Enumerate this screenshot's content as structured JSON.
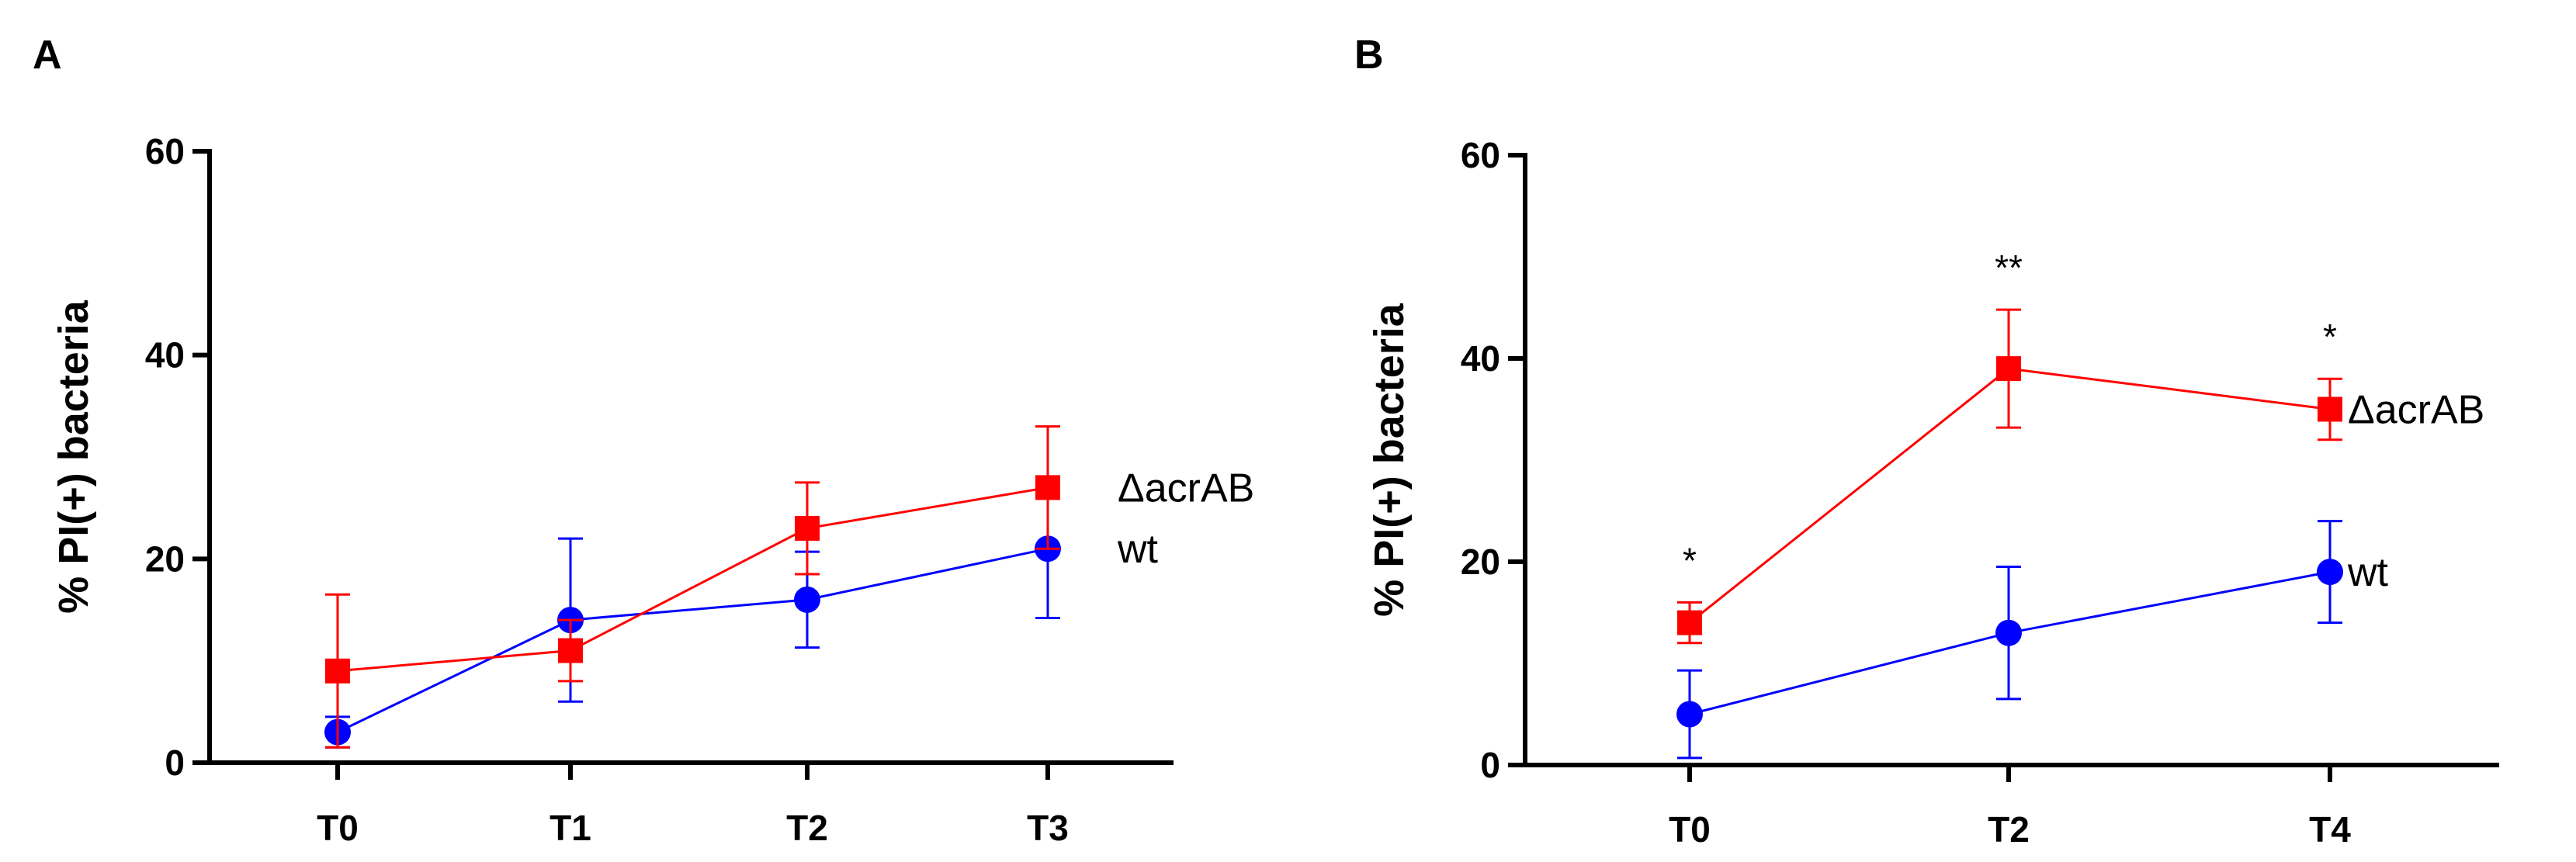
{
  "colors": {
    "mutant": "#ff0000",
    "wild_type": "#0000ff",
    "axis": "#000000"
  },
  "chart_data": [
    {
      "type": "line",
      "panel": "A",
      "title": "",
      "xlabel": "",
      "ylabel": "% PI(+) bacteria",
      "categories": [
        "T0",
        "T1",
        "T2",
        "T3"
      ],
      "ylim": [
        0,
        60
      ],
      "yticks": [
        0,
        20,
        40,
        60
      ],
      "grid": false,
      "legend_placement": "right",
      "series": [
        {
          "name": "ΔacrAB",
          "color": "#ff0000",
          "marker": "square",
          "values": [
            9,
            11,
            23,
            27
          ],
          "err_low": [
            7.5,
            3,
            4.5,
            6
          ],
          "err_high": [
            7.5,
            3,
            4.5,
            6
          ]
        },
        {
          "name": "wt",
          "color": "#0000ff",
          "marker": "circle",
          "values": [
            3,
            14,
            16,
            21
          ],
          "err_low": [
            1.5,
            8,
            4.7,
            6.8
          ],
          "err_high": [
            1.5,
            8,
            4.7,
            6.8
          ]
        }
      ],
      "annotations": []
    },
    {
      "type": "line",
      "panel": "B",
      "title": "",
      "xlabel": "",
      "ylabel": "% PI(+) bacteria",
      "categories": [
        "T0",
        "T2",
        "T4"
      ],
      "ylim": [
        0,
        60
      ],
      "yticks": [
        0,
        20,
        40,
        60
      ],
      "grid": false,
      "legend_placement": "right",
      "series": [
        {
          "name": "ΔacrAB",
          "color": "#ff0000",
          "marker": "square",
          "values": [
            14,
            39,
            35
          ],
          "err_low": [
            2,
            5.8,
            3
          ],
          "err_high": [
            2,
            5.8,
            3
          ]
        },
        {
          "name": "wt",
          "color": "#0000ff",
          "marker": "circle",
          "values": [
            5,
            13,
            19
          ],
          "err_low": [
            4.3,
            6.5,
            5
          ],
          "err_high": [
            4.3,
            6.5,
            5
          ]
        }
      ],
      "annotations": [
        {
          "category": "T0",
          "text": "*"
        },
        {
          "category": "T2",
          "text": "**"
        },
        {
          "category": "T4",
          "text": "*"
        }
      ]
    }
  ]
}
